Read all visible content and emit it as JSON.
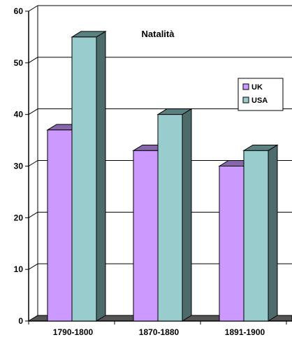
{
  "chart_data": {
    "type": "bar",
    "title": "Natalità",
    "categories": [
      "1790-1800",
      "1870-1880",
      "1891-1900"
    ],
    "series": [
      {
        "name": "UK",
        "values": [
          37,
          33,
          30
        ],
        "color": "#CC99FF"
      },
      {
        "name": "USA",
        "values": [
          55,
          40,
          33
        ],
        "color": "#99CCCC"
      }
    ],
    "ylim": [
      0,
      60
    ],
    "yticks": [
      0,
      10,
      20,
      30,
      40,
      50,
      60
    ],
    "grid": true,
    "legend": "right",
    "style": "3d-column"
  }
}
